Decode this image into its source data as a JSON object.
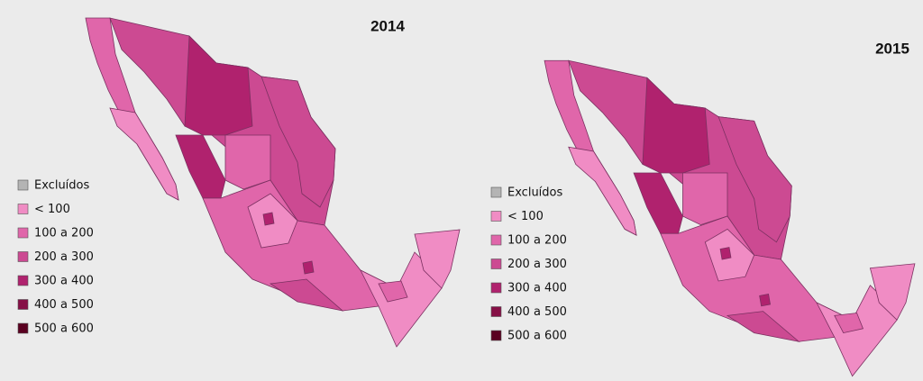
{
  "maps": [
    {
      "title": "2014",
      "legend": [
        {
          "label": "Excluídos",
          "color": "#b4b4b4"
        },
        {
          "label": "< 100",
          "color": "#f08cc4"
        },
        {
          "label": "100 a 200",
          "color": "#e066aa"
        },
        {
          "label": "200 a 300",
          "color": "#cc4a92"
        },
        {
          "label": "300 a 400",
          "color": "#b0226e"
        },
        {
          "label": "400 a 500",
          "color": "#861046"
        },
        {
          "label": "500 a 600",
          "color": "#5a0020"
        }
      ]
    },
    {
      "title": "2015",
      "legend": [
        {
          "label": "Excluídos",
          "color": "#b4b4b4"
        },
        {
          "label": "< 100",
          "color": "#f08cc4"
        },
        {
          "label": "100 a 200",
          "color": "#e066aa"
        },
        {
          "label": "200 a 300",
          "color": "#cc4a92"
        },
        {
          "label": "300 a 400",
          "color": "#b0226e"
        },
        {
          "label": "400 a 500",
          "color": "#861046"
        },
        {
          "label": "500 a 600",
          "color": "#5a0020"
        }
      ]
    }
  ]
}
